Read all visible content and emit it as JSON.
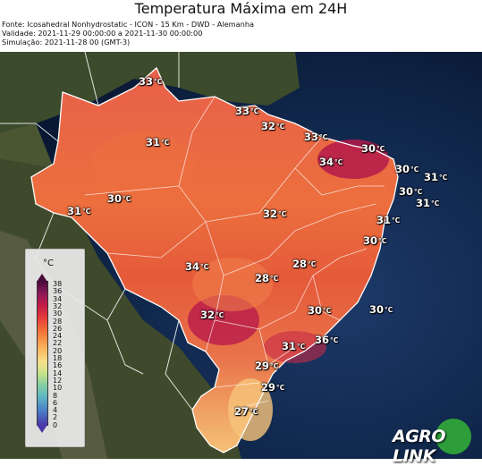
{
  "header": {
    "title": "Temperatura Máxima em 24H",
    "source": "Fonte: Icosahedral Nonhydrostatic - ICON - 15 Km - DWD - Alemanha",
    "validity": "Validade: 2021-11-29 00:00:00 a 2021-11-30 00:00:00",
    "simulation": "Simulação: 2021-11-28 00 (GMT-3)"
  },
  "unit": "°C",
  "legend": {
    "title": "°C",
    "ticks": [
      "38",
      "36",
      "34",
      "32",
      "30",
      "28",
      "26",
      "24",
      "22",
      "20",
      "18",
      "16",
      "14",
      "12",
      "10",
      "8",
      "6",
      "4",
      "2",
      "0"
    ]
  },
  "labels": [
    {
      "value": "33",
      "unit": "°C"
    },
    {
      "value": "33",
      "unit": "°C"
    },
    {
      "value": "32",
      "unit": "°C"
    },
    {
      "value": "33",
      "unit": "°C"
    },
    {
      "value": "30",
      "unit": "°C"
    },
    {
      "value": "31",
      "unit": "°C"
    },
    {
      "value": "34",
      "unit": "°C"
    },
    {
      "value": "30",
      "unit": "°C"
    },
    {
      "value": "31",
      "unit": "°C"
    },
    {
      "value": "30",
      "unit": "°C"
    },
    {
      "value": "30",
      "unit": "°C"
    },
    {
      "value": "31",
      "unit": "°C"
    },
    {
      "value": "31",
      "unit": "°C"
    },
    {
      "value": "32",
      "unit": "°C"
    },
    {
      "value": "31",
      "unit": "°C"
    },
    {
      "value": "30",
      "unit": "°C"
    },
    {
      "value": "34",
      "unit": "°C"
    },
    {
      "value": "28",
      "unit": "°C"
    },
    {
      "value": "28",
      "unit": "°C"
    },
    {
      "value": "30",
      "unit": "°C"
    },
    {
      "value": "30",
      "unit": "°C"
    },
    {
      "value": "32",
      "unit": "°C"
    },
    {
      "value": "31",
      "unit": "°C"
    },
    {
      "value": "36",
      "unit": "°C"
    },
    {
      "value": "29",
      "unit": "°C"
    },
    {
      "value": "29",
      "unit": "°C"
    },
    {
      "value": "27",
      "unit": "°C"
    }
  ],
  "logo": {
    "text": "AGRO LINK"
  },
  "colors": {
    "ocean": "#0d2240",
    "land": "#3a4a2a",
    "heat_low": "#f6c47a",
    "heat_mid": "#f07a3a",
    "heat_high": "#b81a4a"
  }
}
